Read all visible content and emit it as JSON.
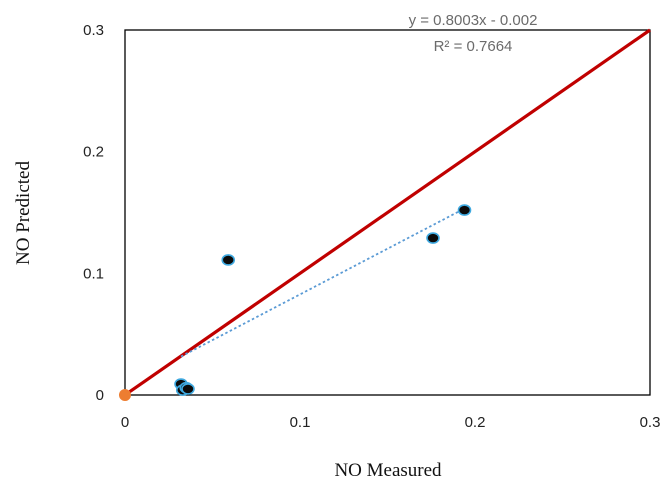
{
  "chart_data": {
    "type": "scatter",
    "xlabel": "NO Measured",
    "ylabel": "NO Predicted",
    "xlim": [
      0,
      0.3
    ],
    "ylim": [
      0,
      0.3
    ],
    "x_ticks": [
      "0",
      "0.1",
      "0.2",
      "0.3"
    ],
    "y_ticks": [
      "0",
      "0.1",
      "0.2",
      "0.3"
    ],
    "grid": false,
    "points": [
      {
        "x": 0.032,
        "y": 0.009
      },
      {
        "x": 0.033,
        "y": 0.004
      },
      {
        "x": 0.035,
        "y": 0.006
      },
      {
        "x": 0.036,
        "y": 0.005
      },
      {
        "x": 0.059,
        "y": 0.111
      },
      {
        "x": 0.176,
        "y": 0.129
      },
      {
        "x": 0.194,
        "y": 0.152
      }
    ],
    "origin_marker": {
      "x": 0,
      "y": 0
    },
    "identity_line": {
      "x": [
        0,
        0.3
      ],
      "y": [
        0,
        0.3
      ]
    },
    "trendline": {
      "x": [
        0.032,
        0.194
      ],
      "slope": 0.8003,
      "intercept": -0.002,
      "equation": "y = 0.8003x - 0.002",
      "r_squared": "R² = 0.7664"
    },
    "colors": {
      "points": "#0b0b0b",
      "point_edge": "#3fa9e0",
      "identity_line": "#c00000",
      "trendline": "#5b9bd5",
      "origin_marker": "#ed7d31"
    }
  }
}
